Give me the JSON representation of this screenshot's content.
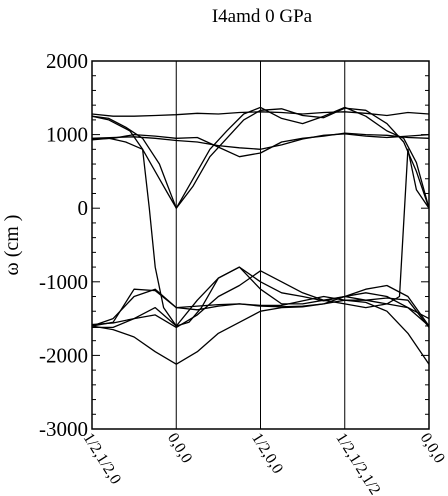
{
  "chart_data": {
    "type": "line",
    "title": "I4amd 0 GPa",
    "ylabel": "ω (cm  )",
    "xlabel": "",
    "ylim": [
      -3000,
      2000
    ],
    "yticks": [
      2000,
      1000,
      0,
      -1000,
      -2000,
      -3000
    ],
    "xlim": [
      0,
      4
    ],
    "x_ticks": [
      {
        "x": 0,
        "label": "1/2,1/2,0"
      },
      {
        "x": 1,
        "label": "0,0,0"
      },
      {
        "x": 2,
        "label": "1/2,0,0"
      },
      {
        "x": 3,
        "label": "1/2,1/2,1/2"
      },
      {
        "x": 4,
        "label": "0,0,0"
      }
    ],
    "grid": false,
    "legend": "none",
    "series": [
      {
        "x": [
          0,
          0.2,
          0.45,
          0.6,
          0.68,
          0.75,
          0.85,
          1,
          1.15,
          1.3,
          1.5,
          1.75,
          2,
          2.25,
          2.5,
          2.75,
          3,
          3.25,
          3.5,
          3.65,
          3.75,
          3.85,
          4
        ],
        "values": [
          1250,
          1200,
          1050,
          800,
          0,
          -800,
          -1350,
          -1600,
          -1550,
          -1350,
          -950,
          -800,
          -1100,
          -1300,
          -1300,
          -1250,
          -1200,
          -1250,
          -1300,
          -1200,
          800,
          250,
          0
        ]
      },
      {
        "x": [
          0,
          0.2,
          0.4,
          0.6,
          0.8,
          0.9,
          1,
          1.2,
          1.4,
          1.6,
          1.8,
          2,
          2.25,
          2.5,
          2.75,
          3,
          3.25,
          3.5,
          3.7,
          3.85,
          4
        ],
        "values": [
          1250,
          1220,
          1100,
          950,
          600,
          300,
          0,
          400,
          800,
          1050,
          1280,
          1370,
          1220,
          1150,
          1250,
          1370,
          1250,
          1050,
          950,
          620,
          0
        ]
      },
      {
        "x": [
          0,
          0.2,
          0.4,
          0.6,
          0.8,
          0.9,
          1,
          1.2,
          1.4,
          1.6,
          1.8,
          2,
          2.25,
          2.5,
          2.75,
          3,
          3.25,
          3.5,
          3.7,
          3.85,
          4
        ],
        "values": [
          930,
          950,
          900,
          800,
          400,
          200,
          0,
          300,
          700,
          950,
          1200,
          1330,
          1350,
          1260,
          1230,
          1360,
          1330,
          1150,
          900,
          500,
          0
        ]
      },
      {
        "x": [
          0,
          0.25,
          0.5,
          0.75,
          1,
          1.25,
          1.5,
          1.75,
          2,
          2.25,
          2.5,
          2.75,
          3,
          3.25,
          3.5,
          3.75,
          4
        ],
        "values": [
          1280,
          1250,
          1250,
          1260,
          1270,
          1290,
          1280,
          1300,
          1310,
          1300,
          1280,
          1300,
          1310,
          1290,
          1260,
          1300,
          1280
        ]
      },
      {
        "x": [
          0,
          0.25,
          0.5,
          0.75,
          1,
          1.25,
          1.5,
          1.75,
          2,
          2.25,
          2.5,
          2.75,
          3,
          3.25,
          3.5,
          3.75,
          4
        ],
        "values": [
          950,
          960,
          970,
          950,
          920,
          900,
          850,
          820,
          800,
          860,
          940,
          990,
          1010,
          980,
          960,
          980,
          1000
        ]
      },
      {
        "x": [
          0,
          0.25,
          0.5,
          0.75,
          1,
          1.25,
          1.5,
          1.75,
          2,
          2.25,
          2.5,
          2.75,
          3,
          3.25,
          3.5,
          3.75,
          4
        ],
        "values": [
          940,
          950,
          1000,
          980,
          950,
          960,
          830,
          700,
          750,
          900,
          950,
          980,
          1020,
          1000,
          990,
          960,
          950
        ]
      },
      {
        "x": [
          0,
          0.25,
          0.5,
          0.75,
          1,
          1.25,
          1.5,
          1.75,
          2,
          2.25,
          2.5,
          2.75,
          3,
          3.25,
          3.5,
          3.75,
          4
        ],
        "values": [
          -1600,
          -1650,
          -1750,
          -1950,
          -2120,
          -1950,
          -1700,
          -1550,
          -1400,
          -1350,
          -1340,
          -1300,
          -1250,
          -1280,
          -1400,
          -1700,
          -2120
        ]
      },
      {
        "x": [
          0,
          0.25,
          0.5,
          0.75,
          1,
          1.25,
          1.5,
          1.75,
          2,
          2.25,
          2.5,
          2.75,
          3,
          3.25,
          3.5,
          3.75,
          4
        ],
        "values": [
          -1580,
          -1560,
          -1500,
          -1450,
          -1620,
          -1450,
          -1200,
          -1050,
          -850,
          -1000,
          -1150,
          -1250,
          -1300,
          -1350,
          -1300,
          -1350,
          -1500
        ]
      },
      {
        "x": [
          0,
          0.25,
          0.5,
          0.75,
          1,
          1.25,
          1.5,
          1.75,
          2,
          2.25,
          2.5,
          2.75,
          3,
          3.25,
          3.5,
          3.75,
          4
        ],
        "values": [
          -1600,
          -1500,
          -1200,
          -1100,
          -1350,
          -1380,
          -1330,
          -1300,
          -1330,
          -1340,
          -1330,
          -1300,
          -1200,
          -1150,
          -1200,
          -1350,
          -1600
        ]
      },
      {
        "x": [
          0,
          0.25,
          0.5,
          0.75,
          1,
          1.25,
          1.5,
          1.75,
          2,
          2.25,
          2.5,
          2.75,
          3,
          3.25,
          3.5,
          3.75,
          4
        ],
        "values": [
          -1600,
          -1550,
          -1100,
          -1120,
          -1350,
          -1330,
          -1310,
          -1300,
          -1320,
          -1320,
          -1260,
          -1200,
          -1250,
          -1250,
          -1220,
          -1250,
          -1620
        ]
      },
      {
        "x": [
          0,
          0.25,
          0.5,
          0.75,
          1,
          1.25,
          1.5,
          1.75,
          2,
          2.25,
          2.5,
          2.75,
          3,
          3.25,
          3.5,
          3.75,
          4
        ],
        "values": [
          -1620,
          -1620,
          -1500,
          -1350,
          -1600,
          -1250,
          -950,
          -800,
          -1000,
          -1150,
          -1200,
          -1260,
          -1200,
          -1100,
          -1050,
          -1200,
          -1600
        ]
      }
    ]
  }
}
